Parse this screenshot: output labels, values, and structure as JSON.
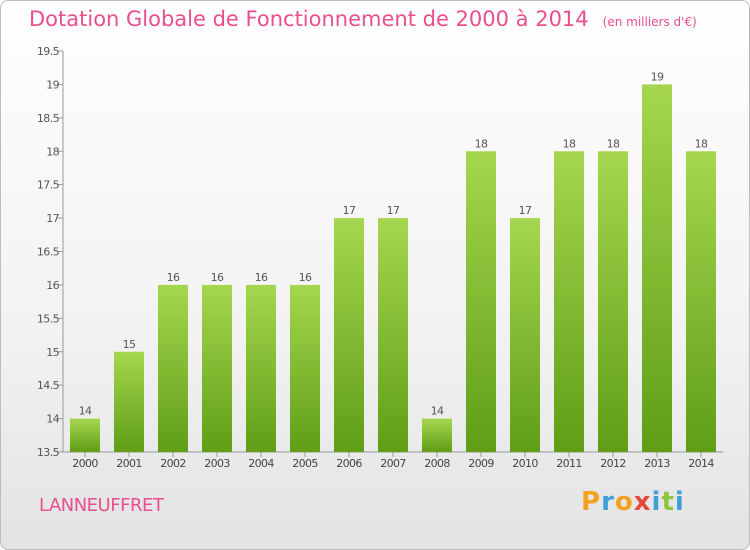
{
  "title": "Dotation Globale de Fonctionnement de 2000 à 2014",
  "unit": "(en milliers d'€)",
  "commune": "LANNEUFFRET",
  "logo": {
    "text": "Proxiti",
    "letters": [
      "P",
      "r",
      "o",
      "x",
      "i",
      "t",
      "i"
    ],
    "colors": [
      "#f4a11f",
      "#3fa0d8",
      "#f4a11f",
      "#e8493f",
      "#3fa0d8",
      "#8cc63f",
      "#3fa0d8"
    ]
  },
  "colors": {
    "bar_top": "#a6d650",
    "bar_bottom": "#5f9e16",
    "title": "#e84f8c"
  },
  "chart_data": {
    "type": "bar",
    "title": "Dotation Globale de Fonctionnement de 2000 à 2014",
    "subtitle": "(en milliers d'€)",
    "categories": [
      "2000",
      "2001",
      "2002",
      "2003",
      "2004",
      "2005",
      "2006",
      "2007",
      "2008",
      "2009",
      "2010",
      "2011",
      "2012",
      "2013",
      "2014"
    ],
    "values": [
      14,
      15,
      16,
      16,
      16,
      16,
      17,
      17,
      14,
      18,
      17,
      18,
      18,
      19,
      18
    ],
    "ylim": [
      13.5,
      19.5
    ],
    "yticks": [
      "13.5",
      "14",
      "14.5",
      "15",
      "15.5",
      "16",
      "16.5",
      "17",
      "17.5",
      "18",
      "18.5",
      "19",
      "19.5"
    ],
    "grid": false,
    "data_labels": true
  }
}
